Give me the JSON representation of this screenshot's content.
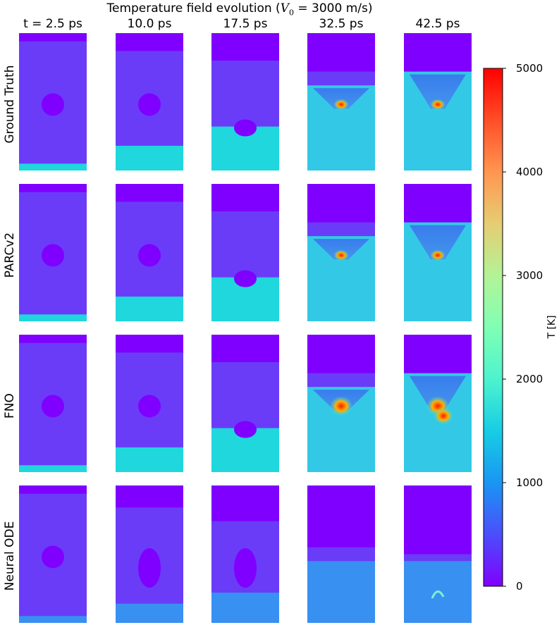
{
  "chart_data": {
    "type": "heatmap",
    "title_prefix": "Temperature field evolution (",
    "title_var": "V",
    "title_sub": "0",
    "title_suffix": " = 3000 m/s)",
    "columns": [
      "t = 2.5 ps",
      "10.0 ps",
      "17.5 ps",
      "32.5 ps",
      "42.5 ps"
    ],
    "rows": [
      "Ground Truth",
      "PARCv2",
      "FNO",
      "Neural ODE"
    ],
    "colorbar": {
      "label": "T [K]",
      "min": 0,
      "max": 5000,
      "ticks": [
        0,
        1000,
        2000,
        3000,
        4000,
        5000
      ],
      "colormap": "rainbow"
    }
  },
  "colors": {
    "cold": "#7f00ff",
    "matrix": "#6a3cf8",
    "shock": "#1fd7dc",
    "shock_light": "#33c9e6",
    "hot": "#ff2a00",
    "warm": "#ffd000"
  }
}
